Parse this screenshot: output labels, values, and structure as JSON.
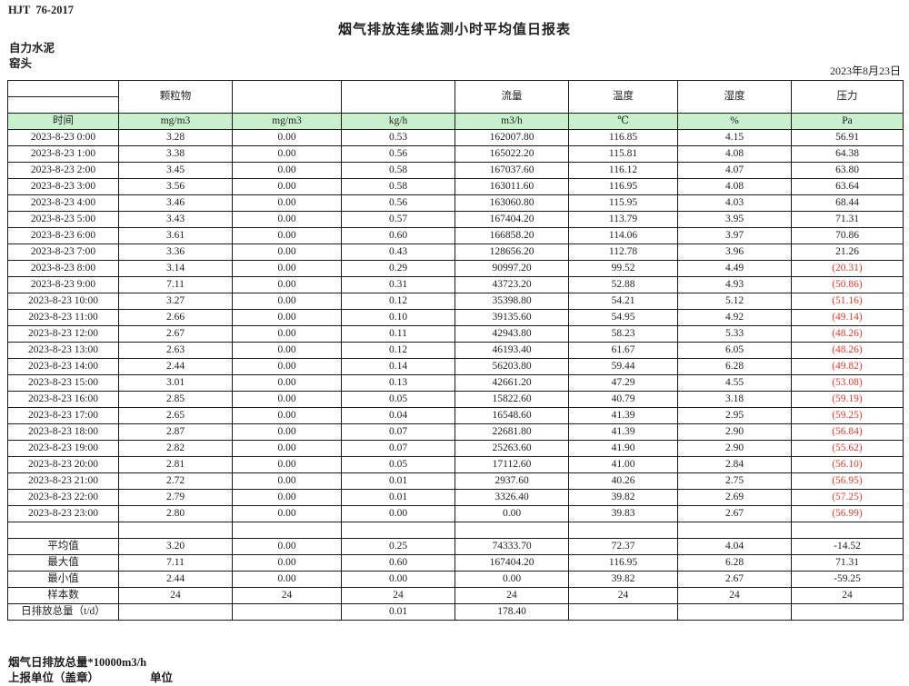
{
  "header": {
    "doc_code": "HJT  76-2017",
    "title": "烟气排放连续监测小时平均值日报表",
    "company": "自力水泥",
    "location": "窑头",
    "date": "2023年8月23日"
  },
  "colors": {
    "header_fill": "#c9f0cd",
    "negative_value": "#e8392b",
    "border": "#1a1a1a"
  },
  "table": {
    "group_headers": [
      "",
      "颗粒物",
      "",
      "",
      "流量",
      "温度",
      "湿度",
      "压力"
    ],
    "unit_row": [
      "时间",
      "mg/m3",
      "mg/m3",
      "kg/h",
      "m3/h",
      "℃",
      "%",
      "Pa"
    ],
    "rows": [
      [
        "2023-8-23 0:00",
        "3.28",
        "0.00",
        "0.53",
        "162007.80",
        "116.85",
        "4.15",
        "56.91"
      ],
      [
        "2023-8-23 1:00",
        "3.38",
        "0.00",
        "0.56",
        "165022.20",
        "115.81",
        "4.08",
        "64.38"
      ],
      [
        "2023-8-23 2:00",
        "3.45",
        "0.00",
        "0.58",
        "167037.60",
        "116.12",
        "4.07",
        "63.80"
      ],
      [
        "2023-8-23 3:00",
        "3.56",
        "0.00",
        "0.58",
        "163011.60",
        "116.95",
        "4.08",
        "63.64"
      ],
      [
        "2023-8-23 4:00",
        "3.46",
        "0.00",
        "0.56",
        "163060.80",
        "115.95",
        "4.03",
        "68.44"
      ],
      [
        "2023-8-23 5:00",
        "3.43",
        "0.00",
        "0.57",
        "167404.20",
        "113.79",
        "3.95",
        "71.31"
      ],
      [
        "2023-8-23 6:00",
        "3.61",
        "0.00",
        "0.60",
        "166858.20",
        "114.06",
        "3.97",
        "70.86"
      ],
      [
        "2023-8-23 7:00",
        "3.36",
        "0.00",
        "0.43",
        "128656.20",
        "112.78",
        "3.96",
        "21.26"
      ],
      [
        "2023-8-23 8:00",
        "3.14",
        "0.00",
        "0.29",
        "90997.20",
        "99.52",
        "4.49",
        "(20.31)"
      ],
      [
        "2023-8-23 9:00",
        "7.11",
        "0.00",
        "0.31",
        "43723.20",
        "52.88",
        "4.93",
        "(50.86)"
      ],
      [
        "2023-8-23 10:00",
        "3.27",
        "0.00",
        "0.12",
        "35398.80",
        "54.21",
        "5.12",
        "(51.16)"
      ],
      [
        "2023-8-23 11:00",
        "2.66",
        "0.00",
        "0.10",
        "39135.60",
        "54.95",
        "4.92",
        "(49.14)"
      ],
      [
        "2023-8-23 12:00",
        "2.67",
        "0.00",
        "0.11",
        "42943.80",
        "58.23",
        "5.33",
        "(48.26)"
      ],
      [
        "2023-8-23 13:00",
        "2.63",
        "0.00",
        "0.12",
        "46193.40",
        "61.67",
        "6.05",
        "(48.26)"
      ],
      [
        "2023-8-23 14:00",
        "2.44",
        "0.00",
        "0.14",
        "56203.80",
        "59.44",
        "6.28",
        "(49.82)"
      ],
      [
        "2023-8-23 15:00",
        "3.01",
        "0.00",
        "0.13",
        "42661.20",
        "47.29",
        "4.55",
        "(53.08)"
      ],
      [
        "2023-8-23 16:00",
        "2.85",
        "0.00",
        "0.05",
        "15822.60",
        "40.79",
        "3.18",
        "(59.19)"
      ],
      [
        "2023-8-23 17:00",
        "2.65",
        "0.00",
        "0.04",
        "16548.60",
        "41.39",
        "2.95",
        "(59.25)"
      ],
      [
        "2023-8-23 18:00",
        "2.87",
        "0.00",
        "0.07",
        "22681.80",
        "41.39",
        "2.90",
        "(56.84)"
      ],
      [
        "2023-8-23 19:00",
        "2.82",
        "0.00",
        "0.07",
        "25263.60",
        "41.90",
        "2.90",
        "(55.62)"
      ],
      [
        "2023-8-23 20:00",
        "2.81",
        "0.00",
        "0.05",
        "17112.60",
        "41.00",
        "2.84",
        "(56.10)"
      ],
      [
        "2023-8-23 21:00",
        "2.72",
        "0.00",
        "0.01",
        "2937.60",
        "40.26",
        "2.75",
        "(56.95)"
      ],
      [
        "2023-8-23 22:00",
        "2.79",
        "0.00",
        "0.01",
        "3326.40",
        "39.82",
        "2.69",
        "(57.25)"
      ],
      [
        "2023-8-23 23:00",
        "2.80",
        "0.00",
        "0.00",
        "0.00",
        "39.83",
        "2.67",
        "(56.99)"
      ]
    ],
    "summary_rows": [
      {
        "label": "平均值",
        "values": [
          "3.20",
          "0.00",
          "0.25",
          "74333.70",
          "72.37",
          "4.04",
          "-14.52"
        ]
      },
      {
        "label": "最大值",
        "values": [
          "7.11",
          "0.00",
          "0.60",
          "167404.20",
          "116.95",
          "6.28",
          "71.31"
        ]
      },
      {
        "label": "最小值",
        "values": [
          "2.44",
          "0.00",
          "0.00",
          "0.00",
          "39.82",
          "2.67",
          "-59.25"
        ]
      },
      {
        "label": "样本数",
        "values": [
          "24",
          "24",
          "24",
          "24",
          "24",
          "24",
          "24"
        ]
      },
      {
        "label": "日排放总量（t/d）",
        "values": [
          "",
          "",
          "0.01",
          "178.40",
          "",
          "",
          ""
        ]
      }
    ]
  },
  "footer": {
    "note": "烟气日排放总量*10000m3/h",
    "report_unit_label": "上报单位（盖章）",
    "unit_label": "单位"
  }
}
